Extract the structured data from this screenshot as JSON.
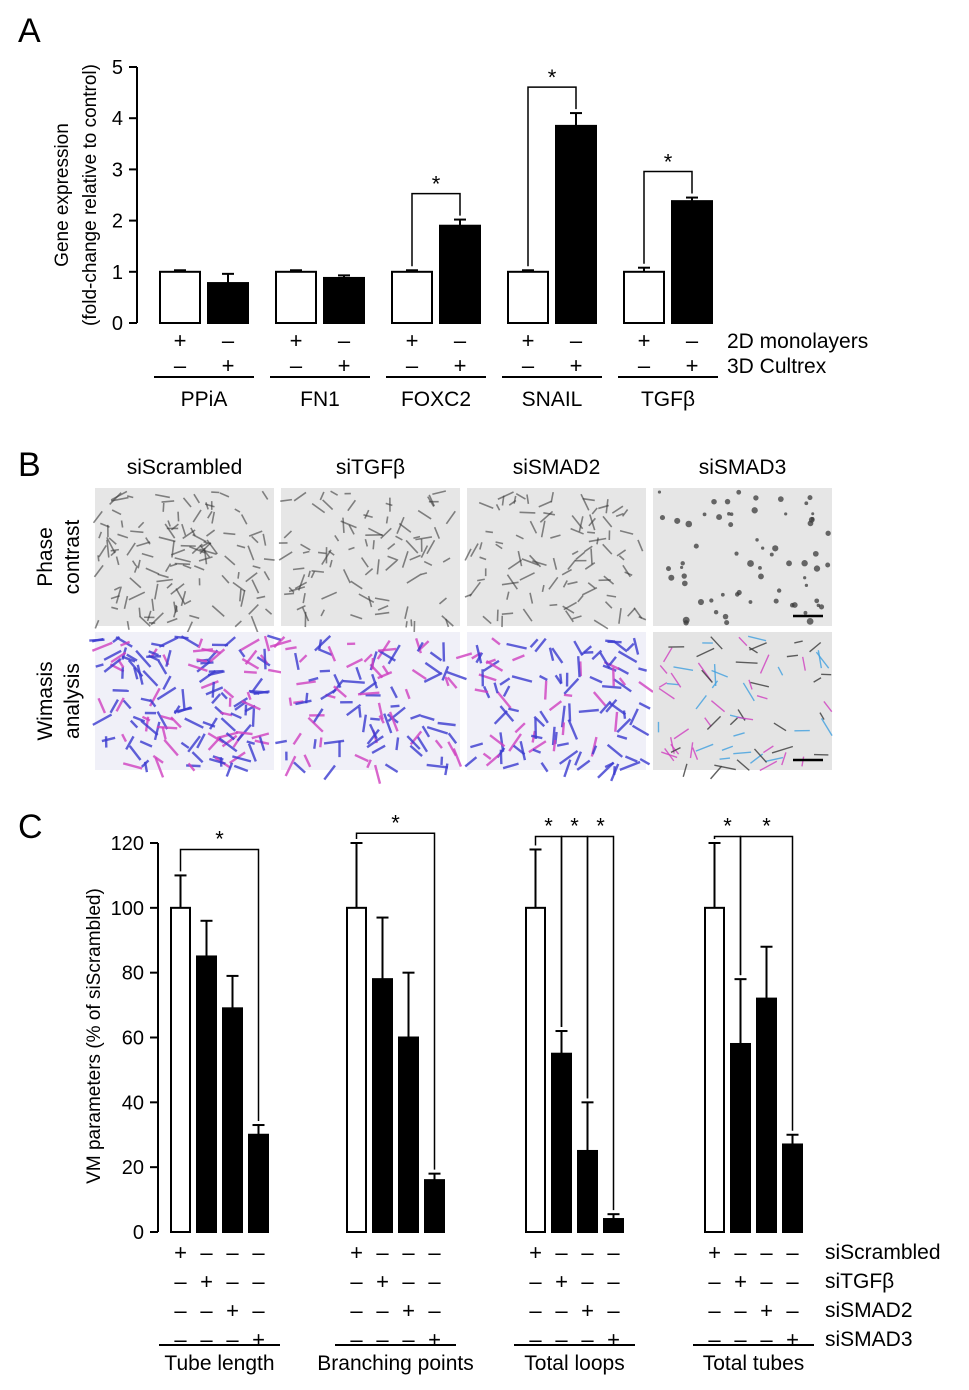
{
  "panel_letters": [
    "A",
    "B",
    "C"
  ],
  "chart_data": [
    {
      "panel": "A",
      "type": "bar",
      "ylabel": "Gene expression",
      "ylabel2": "(fold-change relative to control)",
      "ylim": [
        0,
        5
      ],
      "yticks": [
        "0",
        "1",
        "2",
        "3",
        "4",
        "5"
      ],
      "groups": [
        "PPiA",
        "FN1",
        "FOXC2",
        "SNAIL",
        "TGFβ"
      ],
      "series": [
        {
          "name": "2D monolayers",
          "fill": "white",
          "values": [
            1.0,
            1.0,
            1.0,
            1.0,
            1.0
          ],
          "errors": [
            0.03,
            0.03,
            0.03,
            0.03,
            0.08
          ]
        },
        {
          "name": "3D Cultrex",
          "fill": "black",
          "values": [
            0.78,
            0.88,
            1.9,
            3.85,
            2.38
          ],
          "errors": [
            0.18,
            0.05,
            0.12,
            0.25,
            0.07
          ]
        }
      ],
      "condition_rows": [
        {
          "label": "2D monolayers",
          "marks": [
            "+",
            "–"
          ]
        },
        {
          "label": "3D Cultrex",
          "marks": [
            "–",
            "+"
          ]
        }
      ],
      "significance": [
        {
          "group": 2,
          "label": "*"
        },
        {
          "group": 3,
          "label": "*"
        },
        {
          "group": 4,
          "label": "*"
        }
      ]
    },
    {
      "panel": "C",
      "type": "bar",
      "ylabel": "VM parameters (% of siScrambled)",
      "ylim": [
        0,
        120
      ],
      "yticks": [
        "0",
        "20",
        "40",
        "60",
        "80",
        "100",
        "120"
      ],
      "groups": [
        "Tube length",
        "Branching points",
        "Total loops",
        "Total tubes"
      ],
      "conditions": [
        "siScrambled",
        "siTGFβ",
        "siSMAD2",
        "siSMAD3"
      ],
      "bar_fills": [
        "white",
        "black",
        "black",
        "black"
      ],
      "values": [
        [
          100,
          85,
          69,
          30
        ],
        [
          100,
          78,
          60,
          16
        ],
        [
          100,
          55,
          25,
          4
        ],
        [
          100,
          58,
          72,
          27
        ]
      ],
      "errors": [
        [
          10,
          11,
          10,
          3
        ],
        [
          20,
          19,
          20,
          2
        ],
        [
          18,
          7,
          15,
          1.5
        ],
        [
          20,
          20,
          16,
          3
        ]
      ],
      "condition_marks": [
        [
          "+",
          "–",
          "–",
          "–"
        ],
        [
          "–",
          "+",
          "–",
          "–"
        ],
        [
          "–",
          "–",
          "+",
          "–"
        ],
        [
          "–",
          "–",
          "–",
          "+"
        ]
      ],
      "significance": [
        {
          "group": 0,
          "from": 0,
          "to": 3,
          "label": "*"
        },
        {
          "group": 1,
          "from": 0,
          "to": 3,
          "label": "*"
        },
        {
          "group": 2,
          "from": 0,
          "to": 1,
          "label": "*"
        },
        {
          "group": 2,
          "from": 1,
          "to": 2,
          "label": "*"
        },
        {
          "group": 2,
          "from": 2,
          "to": 3,
          "label": "*"
        },
        {
          "group": 3,
          "from": 0,
          "to": 1,
          "label": "*"
        },
        {
          "group": 3,
          "from": 1,
          "to": 3,
          "label": "*"
        }
      ]
    }
  ],
  "panel_b": {
    "column_labels": [
      "siScrambled",
      "siTGFβ",
      "siSMAD2",
      "siSMAD3"
    ],
    "row_labels": [
      [
        "Phase",
        "contrast"
      ],
      [
        "Wimasis",
        "analysis"
      ]
    ],
    "colors": {
      "phase_bg": "#e6e6e6",
      "phase_dark": "#3a3a3a",
      "wimasis_blue": "#3a3ad0",
      "wimasis_pink": "#d040c0",
      "wimasis_cyan": "#40a0e0"
    }
  }
}
